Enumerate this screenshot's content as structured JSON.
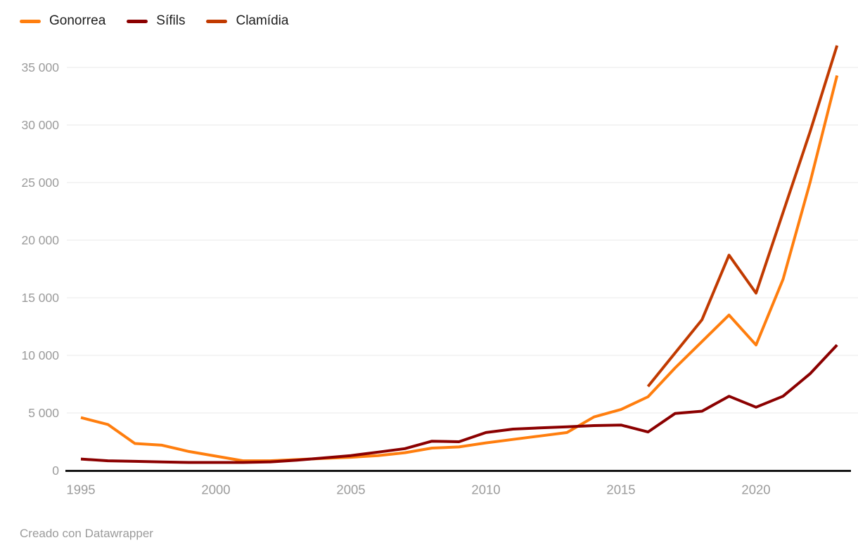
{
  "legend": {
    "items": [
      {
        "label": "Gonorrea"
      },
      {
        "label": "Sífils"
      },
      {
        "label": "Clamídia"
      }
    ]
  },
  "footer": {
    "text": "Creado con Datawrapper"
  },
  "colors": {
    "gonorrea": "#ff7e0e",
    "sifils": "#8b0000",
    "clamidia": "#c13a00",
    "grid": "#e8e8e8",
    "axis": "#161616",
    "tick_label": "#9b9b9b",
    "legend_text": "#1d1d1d",
    "footer_text": "#9b9b9b",
    "background": "#ffffff"
  },
  "chart_data": {
    "type": "line",
    "x": [
      1995,
      1996,
      1997,
      1998,
      1999,
      2000,
      2001,
      2002,
      2003,
      2004,
      2005,
      2006,
      2007,
      2008,
      2009,
      2010,
      2011,
      2012,
      2013,
      2014,
      2015,
      2016,
      2017,
      2018,
      2019,
      2020,
      2021,
      2022,
      2023
    ],
    "series": [
      {
        "name": "Gonorrea",
        "color": "#ff7e0e",
        "values": [
          4600,
          4000,
          2350,
          2200,
          1650,
          1250,
          850,
          850,
          950,
          1050,
          1150,
          1300,
          1550,
          1950,
          2050,
          2400,
          2700,
          3000,
          3300,
          4650,
          5300,
          6400,
          8900,
          11200,
          13500,
          10900,
          16600,
          25000,
          34300
        ]
      },
      {
        "name": "Sífils",
        "color": "#8b0000",
        "values": [
          1000,
          850,
          800,
          750,
          700,
          700,
          700,
          750,
          900,
          1100,
          1300,
          1600,
          1900,
          2550,
          2500,
          3300,
          3600,
          3700,
          3800,
          3900,
          3950,
          3350,
          4950,
          5150,
          6450,
          5500,
          6450,
          8400,
          10900
        ]
      },
      {
        "name": "Clamídia",
        "color": "#c13a00",
        "values": [
          null,
          null,
          null,
          null,
          null,
          null,
          null,
          null,
          null,
          null,
          null,
          null,
          null,
          null,
          null,
          null,
          null,
          null,
          null,
          null,
          null,
          7300,
          10200,
          13100,
          18700,
          15400,
          22400,
          29400,
          36900
        ]
      }
    ],
    "xticks": [
      1995,
      2000,
      2005,
      2010,
      2015,
      2020
    ],
    "yticks": [
      {
        "value": 0,
        "label": "0"
      },
      {
        "value": 5000,
        "label": "5 000"
      },
      {
        "value": 10000,
        "label": "10 000"
      },
      {
        "value": 15000,
        "label": "15 000"
      },
      {
        "value": 20000,
        "label": "20 000"
      },
      {
        "value": 25000,
        "label": "25 000"
      },
      {
        "value": 30000,
        "label": "30 000"
      },
      {
        "value": 35000,
        "label": "35 000"
      }
    ],
    "xlim": [
      1995,
      2023
    ],
    "ylim": [
      0,
      37500
    ],
    "grid": "horizontal",
    "legend_position": "top-left"
  }
}
